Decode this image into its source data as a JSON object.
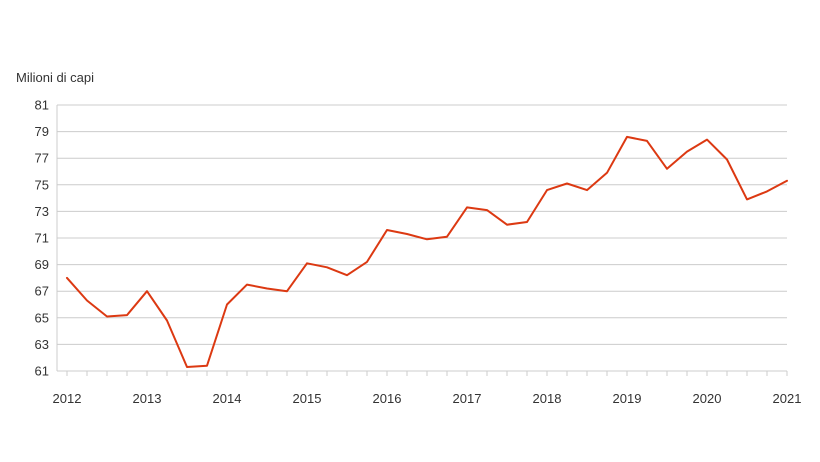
{
  "chart": {
    "y_axis_title": "Milioni di capi",
    "legend": "none"
  },
  "colors": {
    "line": "#dc3912",
    "grid": "#cccccc",
    "axis": "#cccccc",
    "tick": "#cccccc",
    "text": "#333333",
    "background": "#ffffff"
  },
  "chart_data": {
    "type": "line",
    "title": "",
    "ylabel": "Milioni di capi",
    "xlabel": "",
    "x_tick_labels": [
      "2012",
      "2013",
      "2014",
      "2015",
      "2016",
      "2017",
      "2018",
      "2019",
      "2020",
      "2021"
    ],
    "points_per_year": 4,
    "x_start": "2012 Q1",
    "x_end": "2021 Q1",
    "ylim": [
      61,
      81
    ],
    "ytick_step": 2,
    "y_tick_labels": [
      "61",
      "63",
      "65",
      "67",
      "69",
      "71",
      "73",
      "75",
      "77",
      "79",
      "81"
    ],
    "grid": "horizontal-only",
    "legend_position": "none",
    "series": [
      {
        "name": "Milioni di capi",
        "color": "#dc3912",
        "values": [
          68.0,
          66.3,
          65.1,
          65.2,
          67.0,
          64.8,
          61.3,
          61.4,
          66.0,
          67.5,
          67.2,
          67.0,
          69.1,
          68.8,
          68.2,
          69.2,
          71.6,
          71.3,
          70.9,
          71.1,
          73.3,
          73.1,
          72.0,
          72.2,
          74.6,
          75.1,
          74.6,
          75.9,
          78.6,
          78.3,
          76.2,
          77.5,
          78.4,
          76.9,
          73.9,
          74.5,
          75.3
        ]
      }
    ]
  }
}
